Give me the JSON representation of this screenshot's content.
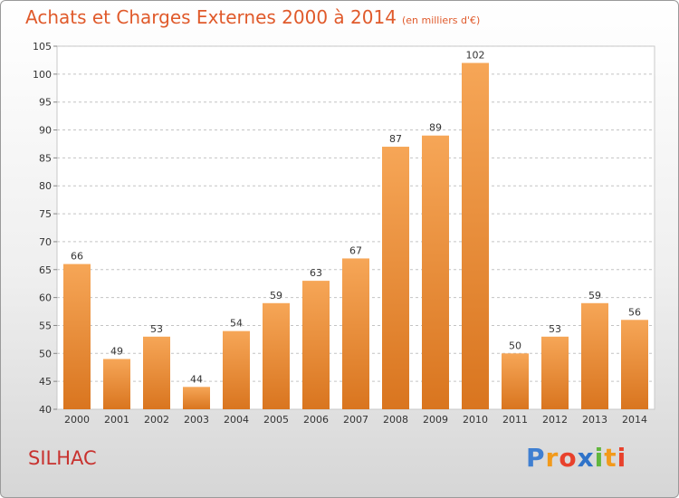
{
  "header": {
    "title": "Achats et Charges Externes 2000 à 2014",
    "subtitle": "(en milliers d'€)"
  },
  "footer": {
    "commune": "SILHAC",
    "logo_text": "Proxiti"
  },
  "colors": {
    "bar_top": "#f6a657",
    "bar_bottom": "#d9751f",
    "title": "#e05a2b",
    "commune": "#c8322f"
  },
  "chart_data": {
    "type": "bar",
    "title": "Achats et Charges Externes 2000 à 2014",
    "subtitle": "(en milliers d'€)",
    "categories": [
      "2000",
      "2001",
      "2002",
      "2003",
      "2004",
      "2005",
      "2006",
      "2007",
      "2008",
      "2009",
      "2010",
      "2011",
      "2012",
      "2013",
      "2014"
    ],
    "values": [
      66,
      49,
      53,
      44,
      54,
      59,
      63,
      67,
      87,
      89,
      102,
      50,
      53,
      59,
      56
    ],
    "ylim": [
      40,
      105
    ],
    "yticks": [
      40,
      45,
      50,
      55,
      60,
      65,
      70,
      75,
      80,
      85,
      90,
      95,
      100,
      105
    ],
    "grid": "horizontal-dashed",
    "xlabel": "",
    "ylabel": ""
  }
}
